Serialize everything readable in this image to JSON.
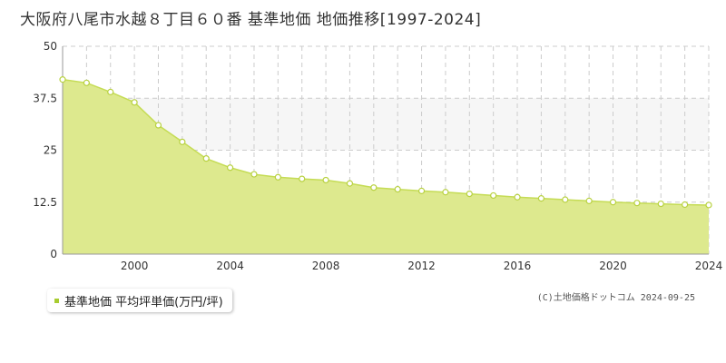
{
  "colors": {
    "fill": "#dde98e",
    "line": "#c5dc55",
    "marker_fill": "#ffffff",
    "marker_stroke": "#b8d140",
    "grid": "#cccccc",
    "band": "#f6f6f6",
    "legend_swatch": "#a8cc30"
  },
  "chart_data": {
    "type": "area",
    "title": "大阪府八尾市水越８丁目６０番 基準地価 地価推移[1997-2024]",
    "xlabel": "",
    "ylabel": "",
    "xlim": [
      1997,
      2024
    ],
    "ylim": [
      0,
      50
    ],
    "x_ticks": [
      "2000",
      "2004",
      "2008",
      "2012",
      "2016",
      "2020",
      "2024"
    ],
    "y_ticks": [
      "0",
      "12.5",
      "25",
      "37.5",
      "50"
    ],
    "grid": true,
    "legend_position": "bottom-left",
    "series": [
      {
        "name": "基準地価 平均坪単価(万円/坪)",
        "x": [
          1997,
          1998,
          1999,
          2000,
          2001,
          2002,
          2003,
          2004,
          2005,
          2006,
          2007,
          2008,
          2009,
          2010,
          2011,
          2012,
          2013,
          2014,
          2015,
          2016,
          2017,
          2018,
          2019,
          2020,
          2021,
          2022,
          2023,
          2024
        ],
        "values": [
          42.0,
          41.2,
          39.0,
          36.5,
          31.0,
          27.0,
          23.0,
          20.8,
          19.2,
          18.5,
          18.1,
          17.8,
          17.0,
          16.0,
          15.6,
          15.2,
          14.9,
          14.5,
          14.1,
          13.7,
          13.4,
          13.1,
          12.8,
          12.5,
          12.3,
          12.1,
          11.9,
          11.8
        ]
      }
    ]
  },
  "legend": {
    "label": "基準地価 平均坪単価(万円/坪)"
  },
  "copyright": "(C)土地価格ドットコム 2024-09-25"
}
